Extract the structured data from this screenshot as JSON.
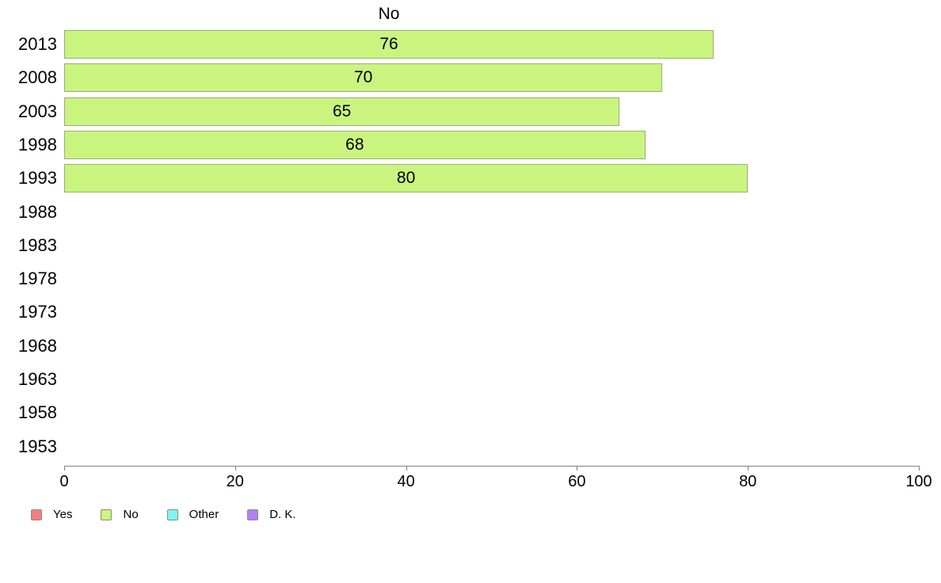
{
  "chart_data": {
    "type": "bar",
    "orientation": "horizontal",
    "title": "No",
    "categories": [
      "2013",
      "2008",
      "2003",
      "1998",
      "1993",
      "1988",
      "1983",
      "1978",
      "1973",
      "1968",
      "1963",
      "1958",
      "1953"
    ],
    "values": [
      76,
      70,
      65,
      68,
      80,
      null,
      null,
      null,
      null,
      null,
      null,
      null,
      null
    ],
    "xlim": [
      0,
      100
    ],
    "x_ticks": [
      0,
      20,
      40,
      60,
      80,
      100
    ],
    "grid": false,
    "bar_fill_color": "#c9f57f",
    "bar_border_color": "#9dab7c",
    "axis_color": "#808080",
    "text_color": "#000000",
    "legend_position": "bottom-left",
    "legend": [
      {
        "label": "Yes",
        "color": "#f57f7f"
      },
      {
        "label": "No",
        "color": "#c9f57f"
      },
      {
        "label": "Other",
        "color": "#7ff5f5"
      },
      {
        "label": "D. K.",
        "color": "#b180f5"
      }
    ]
  }
}
